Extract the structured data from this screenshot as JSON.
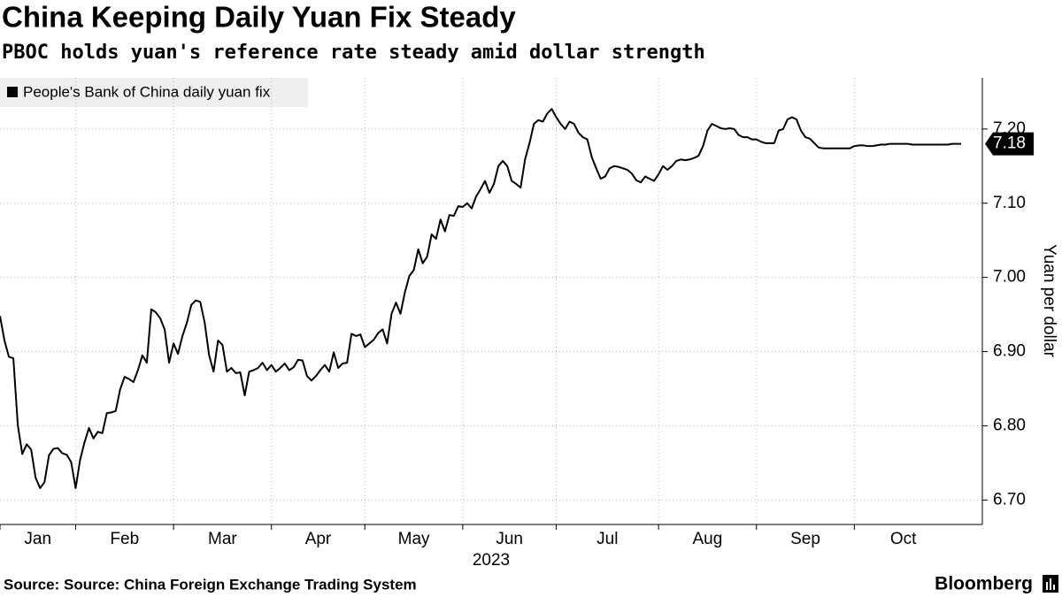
{
  "chart_data": {
    "type": "line",
    "title": "China Keeping Daily Yuan Fix Steady",
    "subtitle": "PBOC holds yuan's reference rate steady amid dollar strength",
    "x_label": "2023",
    "y_label": "Yuan per dollar",
    "source": "Source: Source: China Foreign Exchange Trading System",
    "brand": "Bloomberg",
    "grid": true,
    "legend": "top-left",
    "xlim": [
      0,
      216
    ],
    "xticks": [
      {
        "value": 0,
        "label": "Jan"
      },
      {
        "value": 17,
        "label": "Feb"
      },
      {
        "value": 39,
        "label": "Mar"
      },
      {
        "value": 61,
        "label": "Apr"
      },
      {
        "value": 82,
        "label": "May"
      },
      {
        "value": 104,
        "label": "Jun"
      },
      {
        "value": 125,
        "label": "Jul"
      },
      {
        "value": 148,
        "label": "Aug"
      },
      {
        "value": 170,
        "label": "Sep"
      },
      {
        "value": 192,
        "label": "Oct"
      }
    ],
    "ylim": [
      6.667,
      7.269
    ],
    "yticks": [
      {
        "value": 6.7,
        "label": "6.70"
      },
      {
        "value": 6.8,
        "label": "6.80"
      },
      {
        "value": 6.9,
        "label": "6.90"
      },
      {
        "value": 7.0,
        "label": "7.00"
      },
      {
        "value": 7.1,
        "label": "7.10"
      },
      {
        "value": 7.2,
        "label": "7.20"
      }
    ],
    "series": [
      {
        "name": "People's Bank of China daily yuan fix",
        "color": "#000000",
        "values": [
          6.948,
          6.915,
          6.893,
          6.891,
          6.801,
          6.762,
          6.775,
          6.768,
          6.73,
          6.716,
          6.724,
          6.76,
          6.769,
          6.77,
          6.763,
          6.761,
          6.751,
          6.716,
          6.754,
          6.778,
          6.797,
          6.783,
          6.792,
          6.79,
          6.817,
          6.818,
          6.82,
          6.849,
          6.866,
          6.863,
          6.859,
          6.875,
          6.895,
          6.885,
          6.957,
          6.953,
          6.945,
          6.93,
          6.885,
          6.911,
          6.897,
          6.921,
          6.939,
          6.963,
          6.969,
          6.967,
          6.939,
          6.895,
          6.873,
          6.915,
          6.909,
          6.873,
          6.878,
          6.871,
          6.872,
          6.841,
          6.873,
          6.875,
          6.878,
          6.885,
          6.875,
          6.882,
          6.873,
          6.878,
          6.884,
          6.875,
          6.879,
          6.889,
          6.888,
          6.867,
          6.861,
          6.867,
          6.875,
          6.882,
          6.873,
          6.899,
          6.878,
          6.884,
          6.885,
          6.924,
          6.921,
          6.923,
          6.906,
          6.911,
          6.916,
          6.925,
          6.93,
          6.911,
          6.951,
          6.966,
          6.951,
          6.98,
          7.002,
          7.01,
          7.038,
          7.019,
          7.028,
          7.058,
          7.052,
          7.078,
          7.062,
          7.084,
          7.083,
          7.096,
          7.095,
          7.1,
          7.093,
          7.109,
          7.119,
          7.13,
          7.114,
          7.126,
          7.15,
          7.157,
          7.15,
          7.13,
          7.126,
          7.121,
          7.159,
          7.181,
          7.207,
          7.212,
          7.21,
          7.221,
          7.227,
          7.216,
          7.207,
          7.2,
          7.21,
          7.207,
          7.195,
          7.189,
          7.186,
          7.162,
          7.147,
          7.133,
          7.136,
          7.147,
          7.15,
          7.149,
          7.147,
          7.145,
          7.14,
          7.131,
          7.128,
          7.136,
          7.133,
          7.13,
          7.139,
          7.15,
          7.145,
          7.15,
          7.157,
          7.159,
          7.158,
          7.159,
          7.161,
          7.164,
          7.177,
          7.198,
          7.207,
          7.204,
          7.201,
          7.2,
          7.201,
          7.2,
          7.192,
          7.189,
          7.189,
          7.186,
          7.186,
          7.183,
          7.181,
          7.181,
          7.181,
          7.198,
          7.2,
          7.213,
          7.216,
          7.213,
          7.198,
          7.189,
          7.187,
          7.181,
          7.175,
          7.174,
          7.174,
          7.174,
          7.174,
          7.174,
          7.174,
          7.174,
          7.177,
          7.178,
          7.178,
          7.177,
          7.177,
          7.178,
          7.179,
          7.179,
          7.18,
          7.18,
          7.18,
          7.18,
          7.18,
          7.179,
          7.179,
          7.179,
          7.179,
          7.179,
          7.179,
          7.179,
          7.179,
          7.179,
          7.18,
          7.18,
          7.18
        ]
      }
    ]
  }
}
